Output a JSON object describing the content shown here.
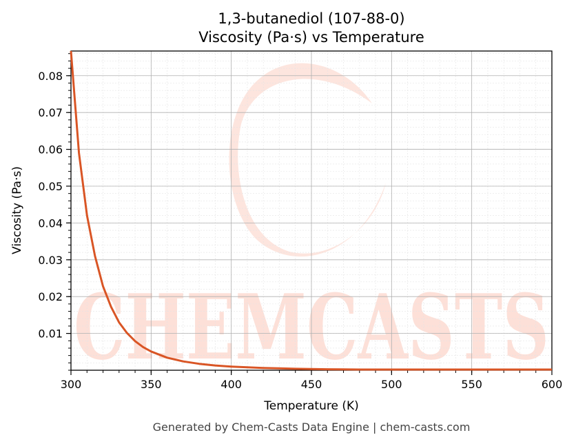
{
  "chart_data": {
    "type": "line",
    "title": "1,3-butanediol (107-88-0)",
    "subtitle": "Viscosity (Pa·s) vs Temperature",
    "xlabel": "Temperature (K)",
    "ylabel": "Viscosity (Pa·s)",
    "xlim": [
      300,
      600
    ],
    "ylim": [
      0,
      0.0867
    ],
    "xticks": [
      300,
      350,
      400,
      450,
      500,
      550,
      600
    ],
    "yticks": [
      0.01,
      0.02,
      0.03,
      0.04,
      0.05,
      0.06,
      0.07,
      0.08
    ],
    "grid": true,
    "legend": "none",
    "series": [
      {
        "color": "#d95525",
        "x": [
          300,
          305,
          310,
          315,
          320,
          325,
          330,
          335,
          340,
          345,
          350,
          360,
          370,
          380,
          390,
          400,
          410,
          420,
          430,
          440,
          450,
          460,
          470,
          475,
          480,
          485,
          500,
          550,
          600
        ],
        "y": [
          0.0867,
          0.059,
          0.042,
          0.031,
          0.0228,
          0.0172,
          0.013,
          0.0101,
          0.0079,
          0.0063,
          0.0051,
          0.0034,
          0.0024,
          0.00175,
          0.0013,
          0.001,
          0.00078,
          0.00062,
          0.0005,
          0.0004,
          0.00033,
          0.00027,
          0.00022,
          0.0002,
          0.0001,
          0.0,
          0.0,
          0.0,
          0.0
        ]
      }
    ]
  },
  "footer": "Generated by Chem-Casts Data Engine | chem-casts.com",
  "watermark": {
    "text": "CHEMCASTS",
    "color": "#fde0d8"
  }
}
